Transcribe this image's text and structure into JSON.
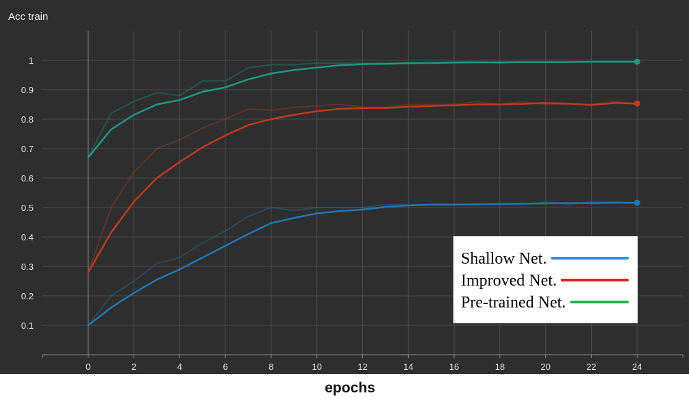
{
  "chart_data": {
    "type": "line",
    "title": "Acc train",
    "xlabel": "epochs",
    "ylabel": "",
    "xlim": [
      -2,
      26
    ],
    "ylim": [
      0,
      1.1
    ],
    "x_ticks": [
      0,
      2,
      4,
      6,
      8,
      10,
      12,
      14,
      16,
      18,
      20,
      22,
      24
    ],
    "y_ticks": [
      0.1,
      0.2,
      0.3,
      0.4,
      0.5,
      0.6,
      0.7,
      0.8,
      0.9,
      1
    ],
    "y_tick_labels": [
      "0.1",
      "0.2",
      "0.3",
      "0.4",
      "0.5",
      "0.6",
      "0.7",
      "0.8",
      "0.9",
      "1"
    ],
    "grid": true,
    "legend_position": "right",
    "background": "#2e2e2e",
    "grid_color": "#4a4a4a",
    "x": [
      0,
      1,
      2,
      3,
      4,
      5,
      6,
      7,
      8,
      9,
      10,
      11,
      12,
      13,
      14,
      15,
      16,
      17,
      18,
      19,
      20,
      21,
      22,
      23,
      24
    ],
    "series": [
      {
        "name": "Shallow Net.",
        "color": "#1f77b4",
        "legend_color": "#1a9ad6",
        "values": [
          0.1,
          0.16,
          0.21,
          0.255,
          0.29,
          0.33,
          0.37,
          0.41,
          0.447,
          0.465,
          0.48,
          0.488,
          0.493,
          0.502,
          0.507,
          0.51,
          0.51,
          0.511,
          0.512,
          0.513,
          0.514,
          0.515,
          0.515,
          0.516,
          0.516
        ],
        "raw_values": [
          0.1,
          0.2,
          0.25,
          0.31,
          0.33,
          0.38,
          0.42,
          0.47,
          0.5,
          0.49,
          0.5,
          0.5,
          0.5,
          0.51,
          0.51,
          0.51,
          0.51,
          0.51,
          0.51,
          0.51,
          0.52,
          0.51,
          0.52,
          0.52,
          0.516
        ]
      },
      {
        "name": "Improved Net.",
        "color": "#c0391b",
        "legend_color": "#e02020",
        "values": [
          0.28,
          0.415,
          0.52,
          0.6,
          0.655,
          0.705,
          0.745,
          0.78,
          0.8,
          0.815,
          0.827,
          0.835,
          0.838,
          0.838,
          0.842,
          0.845,
          0.847,
          0.85,
          0.85,
          0.852,
          0.855,
          0.853,
          0.848,
          0.855,
          0.853
        ],
        "raw_values": [
          0.28,
          0.5,
          0.62,
          0.7,
          0.73,
          0.77,
          0.8,
          0.835,
          0.83,
          0.84,
          0.845,
          0.85,
          0.84,
          0.84,
          0.85,
          0.85,
          0.85,
          0.86,
          0.85,
          0.86,
          0.85,
          0.85,
          0.85,
          0.86,
          0.853
        ]
      },
      {
        "name": "Pre-trained Net.",
        "color": "#1a9a84",
        "legend_color": "#1fb050",
        "values": [
          0.67,
          0.765,
          0.815,
          0.85,
          0.865,
          0.893,
          0.908,
          0.935,
          0.955,
          0.967,
          0.975,
          0.983,
          0.987,
          0.988,
          0.99,
          0.991,
          0.992,
          0.993,
          0.993,
          0.994,
          0.994,
          0.994,
          0.995,
          0.995,
          0.995
        ],
        "raw_values": [
          0.67,
          0.82,
          0.86,
          0.89,
          0.88,
          0.93,
          0.93,
          0.975,
          0.985,
          0.985,
          0.99,
          0.99,
          0.99,
          0.99,
          0.99,
          0.99,
          0.995,
          0.995,
          0.99,
          0.995,
          0.995,
          0.995,
          0.995,
          0.995,
          0.995
        ]
      }
    ]
  }
}
